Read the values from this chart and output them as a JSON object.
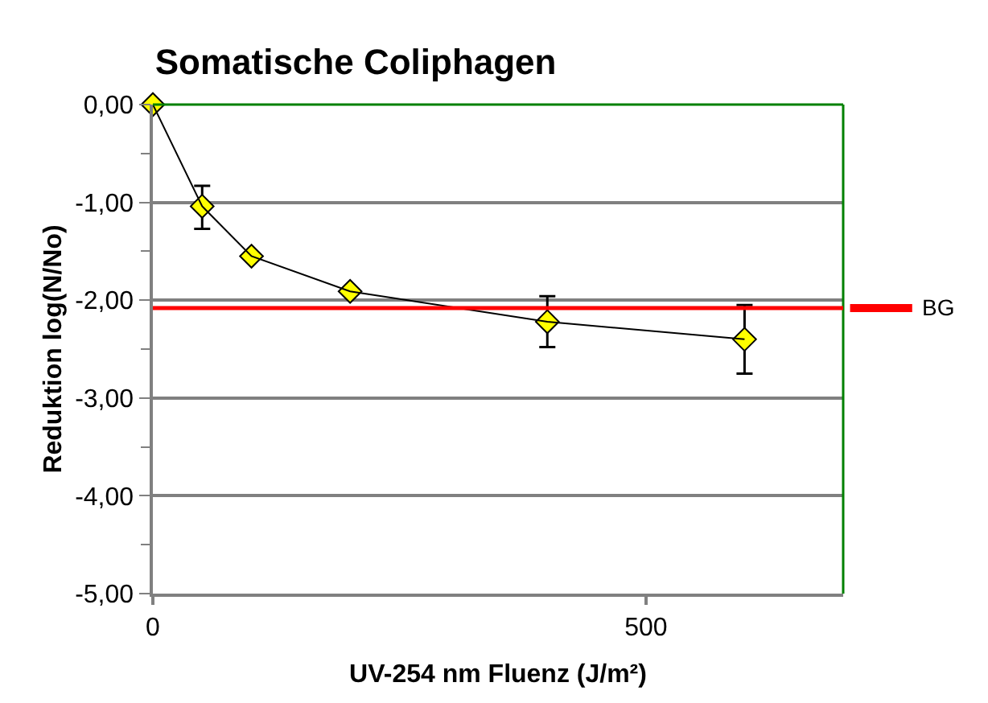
{
  "chart_data": {
    "type": "line",
    "title": "Somatische Coliphagen",
    "xlabel": "UV-254 nm Fluenz (J/m²)",
    "ylabel": "Reduktion log(N/No)",
    "x": [
      0,
      50,
      100,
      200,
      400,
      600
    ],
    "series": [
      {
        "color": "#ffff00",
        "values": [
          0,
          -1.04,
          -1.55,
          -1.91,
          -2.22,
          -2.4
        ],
        "errors": [
          null,
          [
            -1.27,
            -0.83
          ],
          null,
          null,
          [
            -2.48,
            -1.96
          ],
          [
            -2.75,
            -2.05
          ]
        ]
      }
    ],
    "marker": "diamond",
    "line_style": "solid",
    "xlim": [
      0,
      700
    ],
    "xticks": [
      0,
      500
    ],
    "ylim": [
      -5,
      0
    ],
    "yticks": [
      {
        "value": 0,
        "label": "0,00"
      },
      {
        "value": -1,
        "label": "-1,00"
      },
      {
        "value": -2,
        "label": "-2,00"
      },
      {
        "value": -3,
        "label": "-3,00"
      },
      {
        "value": -4,
        "label": "-4,00"
      },
      {
        "value": -5,
        "label": "-5,00"
      }
    ],
    "grid": "y",
    "ref_lines": [
      {
        "axis": "y",
        "value": -2.08,
        "label": "BG",
        "color": "#ff0000"
      }
    ]
  }
}
